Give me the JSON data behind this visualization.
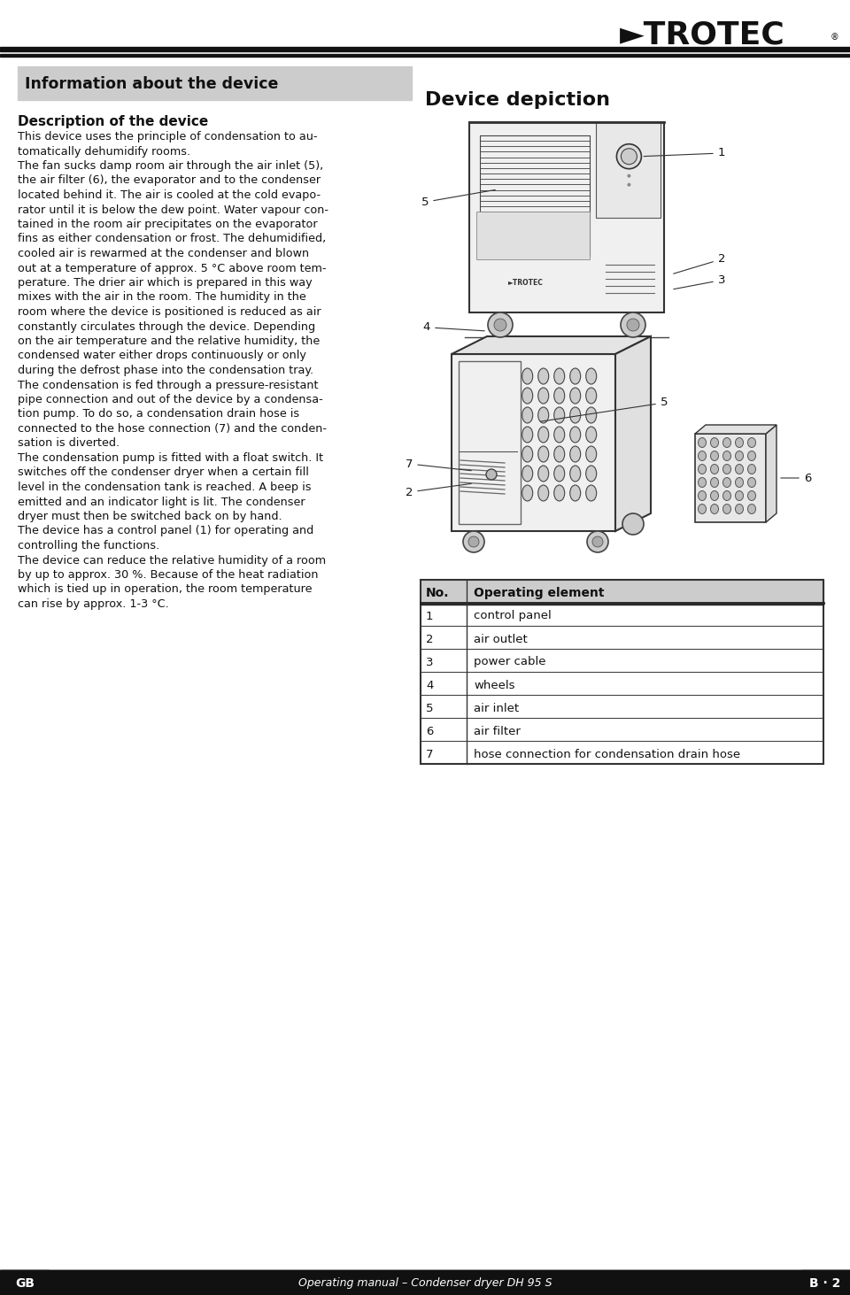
{
  "page_bg": "#ffffff",
  "header_separator_color": "#222222",
  "footer_bg": "#111111",
  "footer_text_color": "#ffffff",
  "footer_text_center": "Operating manual – Condenser dryer DH 95 S",
  "footer_text_left": "GB",
  "footer_text_right": "B · 2",
  "info_box_bg": "#cccccc",
  "info_box_title": "Information about the device",
  "section_title": "Description of the device",
  "body_paragraphs": [
    "This device uses the principle of condensation to au-\ntomatically dehumidify rooms.",
    "The fan sucks damp room air through the air inlet (5),\nthe air filter (6), the evaporator and to the condenser\nlocated behind it. The air is cooled at the cold evapo-\nrator until it is below the dew point. Water vapour con-\ntained in the room air precipitates on the evaporator\nfins as either condensation or frost. The dehumidified,\ncooled air is rewarmed at the condenser and blown\nout at a temperature of approx. 5 °C above room tem-\nperature. The drier air which is prepared in this way\nmixes with the air in the room. The humidity in the\nroom where the device is positioned is reduced as air\nconstantly circulates through the device. Depending\non the air temperature and the relative humidity, the\ncondensed water either drops continuously or only\nduring the defrost phase into the condensation tray.",
    "The condensation is fed through a pressure-resistant\npipe connection and out of the device by a condensa-\ntion pump. To do so, a condensation drain hose is\nconnected to the hose connection (7) and the conden-\nsation is diverted.",
    "The condensation pump is fitted with a float switch. It\nswitches off the condenser dryer when a certain fill\nlevel in the condensation tank is reached. A beep is\nemitted and an indicator light is lit. The condenser\ndryer must then be switched back on by hand.",
    "The device has a control panel (1) for operating and\ncontrolling the functions.",
    "The device can reduce the relative humidity of a room\nby up to approx. 30 %. Because of the heat radiation\nwhich is tied up in operation, the room temperature\ncan rise by approx. 1-3 °C."
  ],
  "device_depiction_title": "Device depiction",
  "table_header": [
    "No.",
    "Operating element"
  ],
  "table_rows": [
    [
      "1",
      "control panel"
    ],
    [
      "2",
      "air outlet"
    ],
    [
      "3",
      "power cable"
    ],
    [
      "4",
      "wheels"
    ],
    [
      "5",
      "air inlet"
    ],
    [
      "6",
      "air filter"
    ],
    [
      "7",
      "hose connection for condensation drain hose"
    ]
  ],
  "table_header_bg": "#cccccc",
  "table_line_color": "#444444",
  "device_outline_color": "#333333",
  "device_fill_color": "#f0f0f0",
  "grille_color": "#555555",
  "label_color": "#111111"
}
